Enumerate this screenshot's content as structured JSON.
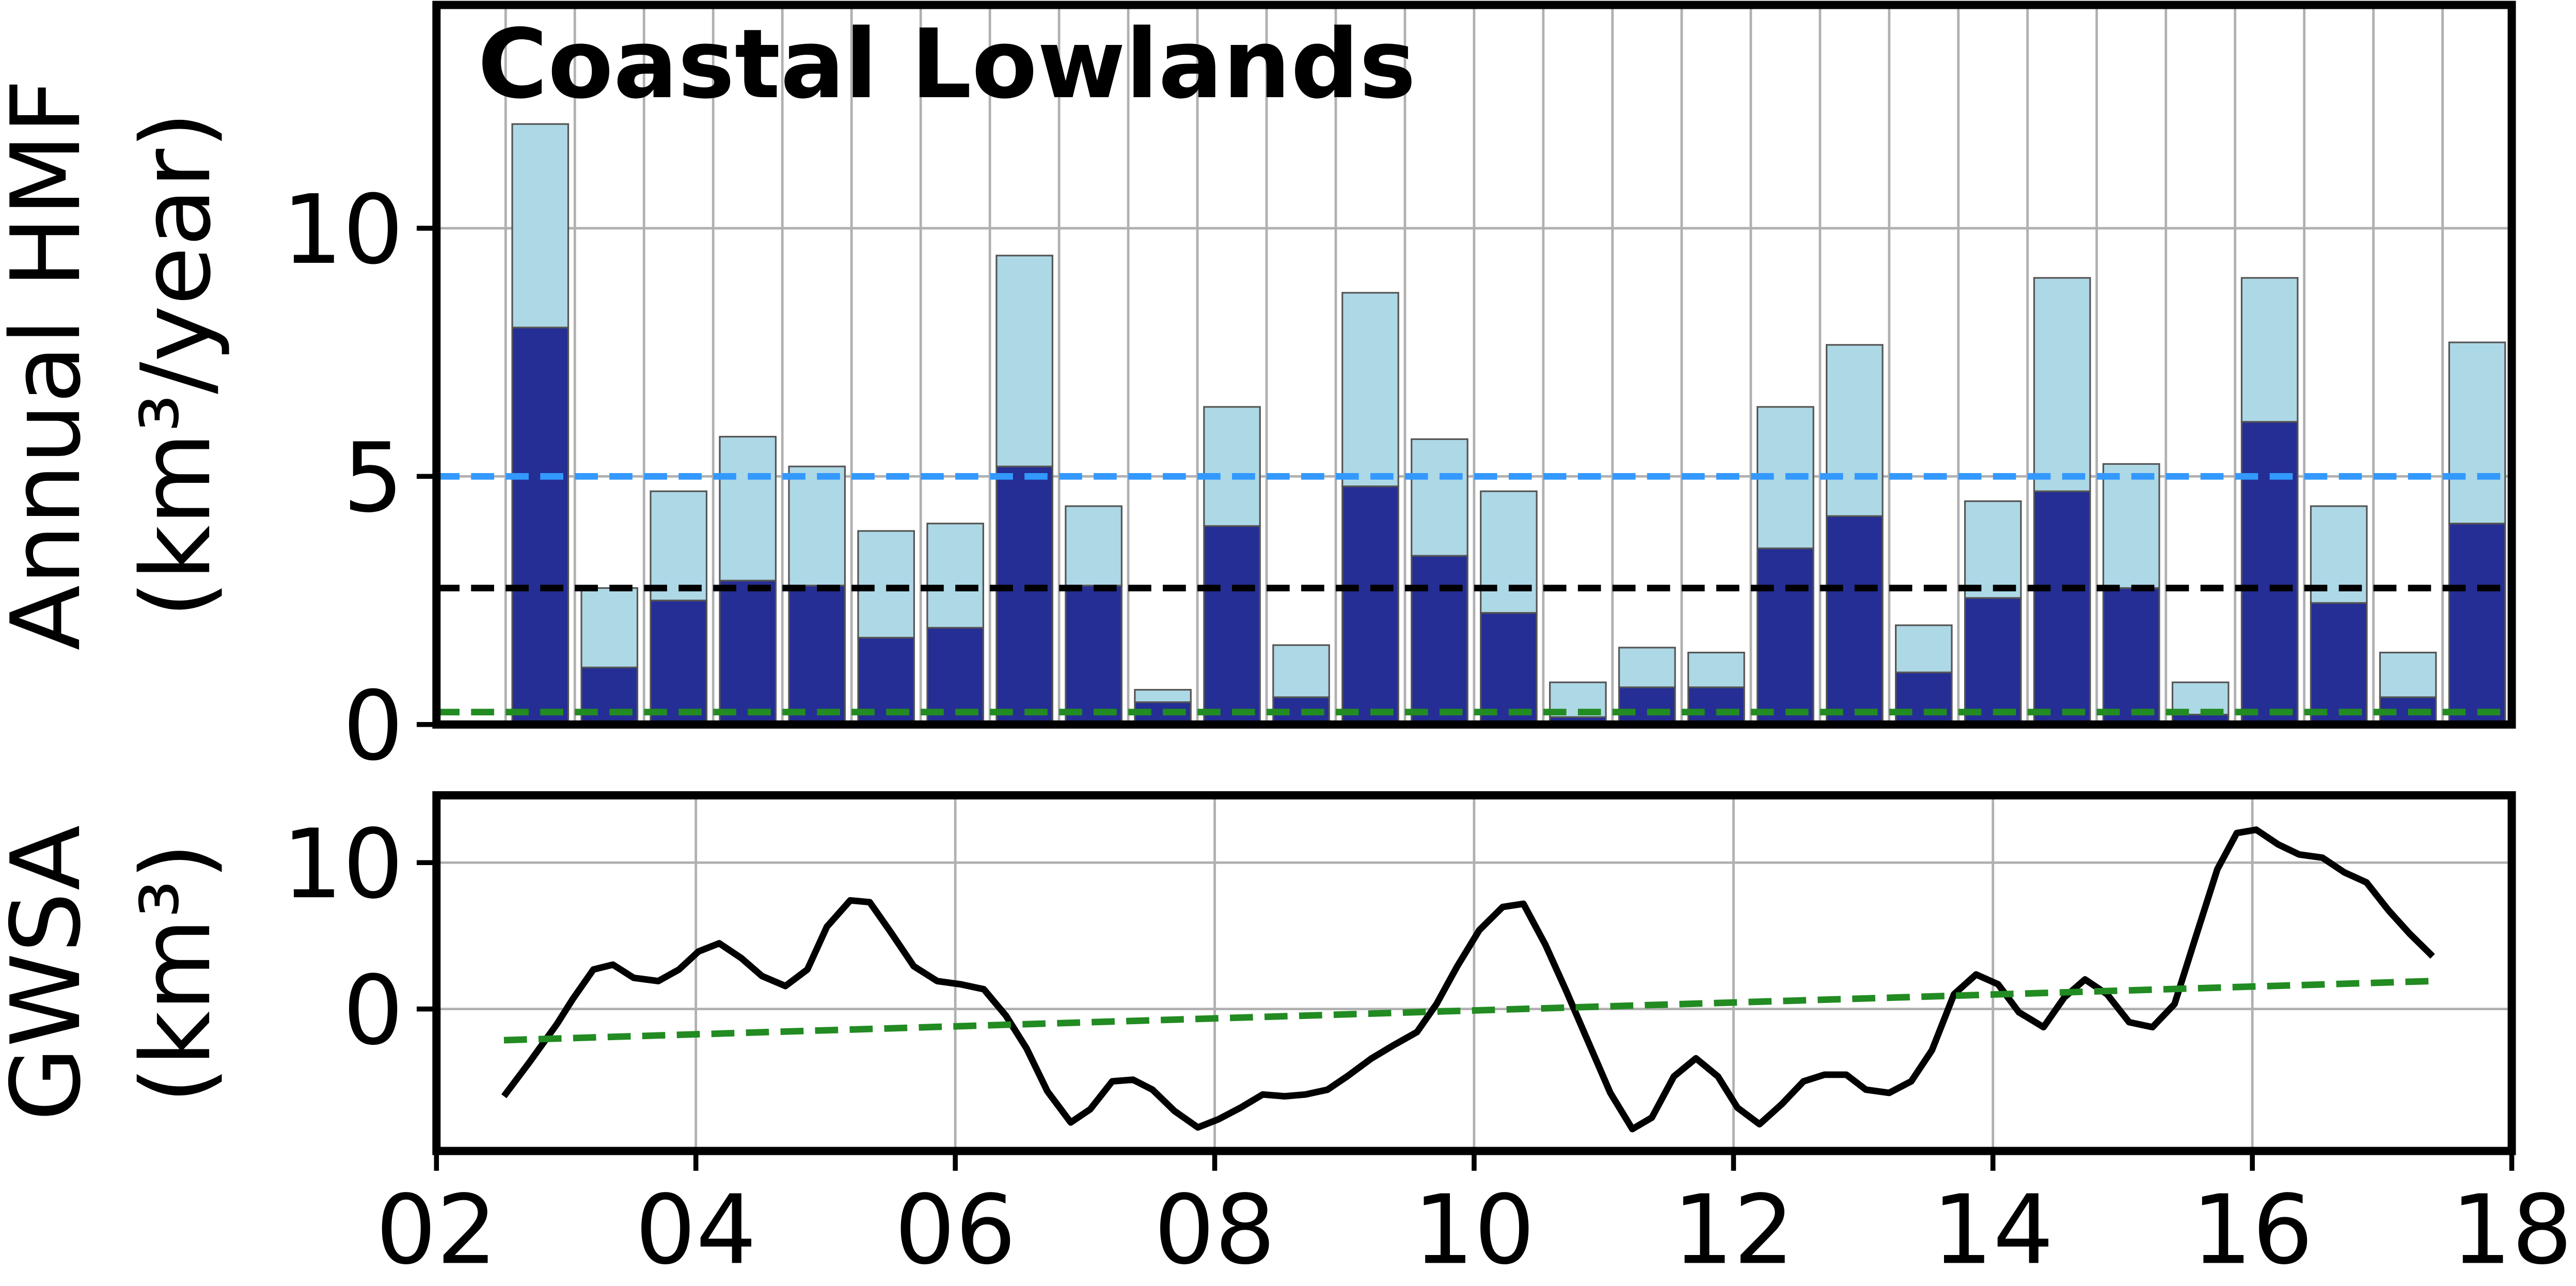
{
  "chart_data": [
    {
      "type": "bar",
      "title": "Coastal Lowlands",
      "ylabel": [
        "Annual HMF",
        "(km³/year)"
      ],
      "stacked": true,
      "grid": true,
      "categories": [
        null,
        null,
        null,
        null,
        null,
        null,
        null,
        null,
        null,
        null,
        null,
        null,
        null,
        null,
        null,
        null,
        null,
        null,
        null,
        null,
        null,
        null,
        null,
        null,
        null,
        null,
        null,
        null,
        null,
        null
      ],
      "series": [
        {
          "color": "#252e94",
          "values": [
            null,
            8.0,
            1.15,
            2.5,
            2.9,
            2.8,
            1.75,
            1.95,
            5.2,
            2.8,
            0.45,
            4.0,
            0.55,
            4.8,
            3.4,
            2.25,
            0.15,
            0.75,
            0.75,
            3.55,
            4.2,
            1.05,
            2.55,
            4.7,
            2.75,
            0.2,
            6.1,
            2.45,
            0.55,
            4.05
          ]
        },
        {
          "color": "#add8e6",
          "values": [
            null,
            4.1,
            1.6,
            2.2,
            2.9,
            2.4,
            2.15,
            2.1,
            4.25,
            1.6,
            0.25,
            2.4,
            1.05,
            3.9,
            2.35,
            2.45,
            0.7,
            0.8,
            0.7,
            2.85,
            3.45,
            0.95,
            1.95,
            4.3,
            2.5,
            0.65,
            2.9,
            1.95,
            0.9,
            3.65
          ]
        }
      ],
      "hlines": [
        {
          "value": 5.0,
          "color": "#3399ff"
        },
        {
          "value": 2.75,
          "color": "#000000"
        },
        {
          "value": 0.25,
          "color": "#228b22"
        }
      ],
      "ylim": [
        0,
        14.5
      ],
      "yticks": [
        0,
        5,
        10
      ]
    },
    {
      "type": "line",
      "ylabel": [
        "GWSA",
        "(km³)"
      ],
      "grid": true,
      "series": [
        {
          "color": "#000000",
          "x": [
            2002.52,
            2002.72,
            2002.93,
            2003.05,
            2003.21,
            2003.36,
            2003.52,
            2003.71,
            2003.87,
            2004.02,
            2004.18,
            2004.35,
            2004.51,
            2004.69,
            2004.86,
            2005.01,
            2005.19,
            2005.34,
            2005.5,
            2005.68,
            2005.86,
            2006.04,
            2006.22,
            2006.39,
            2006.55,
            2006.71,
            2006.89,
            2007.04,
            2007.21,
            2007.37,
            2007.52,
            2007.69,
            2007.87,
            2008.03,
            2008.2,
            2008.37,
            2008.54,
            2008.7,
            2008.87,
            2009.02,
            2009.21,
            2009.38,
            2009.56,
            2009.71,
            2009.87,
            2010.04,
            2010.22,
            2010.38,
            2010.55,
            2010.71,
            2010.88,
            2011.05,
            2011.22,
            2011.37,
            2011.54,
            2011.71,
            2011.88,
            2012.03,
            2012.2,
            2012.37,
            2012.54,
            2012.7,
            2012.87,
            2013.02,
            2013.2,
            2013.37,
            2013.53,
            2013.7,
            2013.87,
            2014.04,
            2014.2,
            2014.39,
            2014.55,
            2014.71,
            2014.88,
            2015.05,
            2015.23,
            2015.4,
            2015.56,
            2015.73,
            2015.88,
            2016.03,
            2016.2,
            2016.36,
            2016.54,
            2016.71,
            2016.88,
            2017.05,
            2017.21,
            2017.39
          ],
          "values": [
            -5.96,
            -3.6,
            -1.01,
            0.67,
            2.7,
            3.03,
            2.13,
            1.91,
            2.7,
            3.93,
            4.49,
            3.48,
            2.25,
            1.57,
            2.7,
            5.62,
            7.42,
            7.3,
            5.28,
            2.92,
            1.91,
            1.69,
            1.35,
            -0.45,
            -2.7,
            -5.62,
            -7.75,
            -6.85,
            -4.94,
            -4.83,
            -5.51,
            -6.97,
            -8.09,
            -7.53,
            -6.74,
            -5.84,
            -5.96,
            -5.84,
            -5.51,
            -4.61,
            -3.37,
            -2.47,
            -1.57,
            0.34,
            2.92,
            5.39,
            6.97,
            7.19,
            4.38,
            1.24,
            -2.25,
            -5.73,
            -8.2,
            -7.42,
            -4.61,
            -3.37,
            -4.61,
            -6.74,
            -7.87,
            -6.52,
            -4.94,
            -4.49,
            -4.49,
            -5.51,
            -5.73,
            -4.94,
            -2.81,
            1.01,
            2.36,
            1.69,
            -0.22,
            -1.24,
            0.79,
            2.02,
            1.01,
            -0.9,
            -1.24,
            0.34,
            4.83,
            9.55,
            12.02,
            12.25,
            11.24,
            10.56,
            10.34,
            9.33,
            8.65,
            6.74,
            5.17,
            3.6
          ]
        },
        {
          "color": "#228b22",
          "dashed": true,
          "x": [
            2002.52,
            2017.39
          ],
          "values": [
            -2.13,
            1.91
          ]
        }
      ],
      "xlim": [
        2002,
        2018
      ],
      "xticks": [
        {
          "value": 2002,
          "label": "02"
        },
        {
          "value": 2004,
          "label": "04"
        },
        {
          "value": 2006,
          "label": "06"
        },
        {
          "value": 2008,
          "label": "08"
        },
        {
          "value": 2010,
          "label": "10"
        },
        {
          "value": 2012,
          "label": "12"
        },
        {
          "value": 2014,
          "label": "14"
        },
        {
          "value": 2016,
          "label": "16"
        },
        {
          "value": 2018,
          "label": "18"
        }
      ],
      "ylim": [
        -9.7,
        14.6
      ],
      "yticks": [
        0,
        10
      ]
    }
  ]
}
